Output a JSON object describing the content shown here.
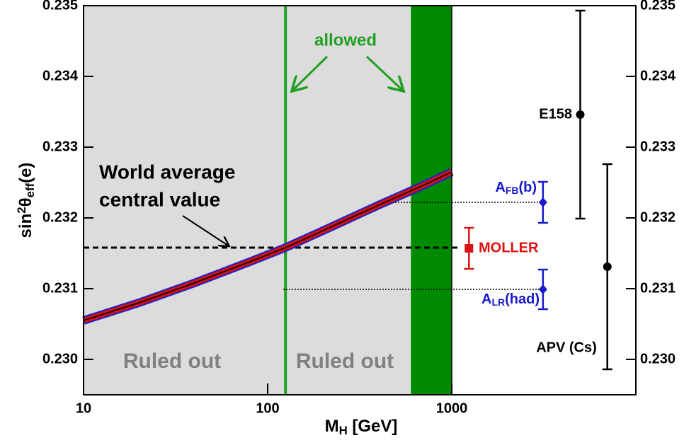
{
  "chart_data": {
    "type": "band_with_points",
    "xlabel": [
      "M",
      "H",
      " [GeV]"
    ],
    "ylabel": [
      "sin",
      "2",
      "θ",
      "eff",
      "(e)"
    ],
    "xscale": "log",
    "xlim": [
      10,
      10000
    ],
    "xticks": [
      10,
      100,
      1000
    ],
    "ylim": [
      0.2295,
      0.235
    ],
    "yticks": [
      {
        "value": 0.23,
        "label": "0.230"
      },
      0.231,
      0.232,
      0.233,
      0.234,
      0.235
    ],
    "regions": [
      {
        "x": [
          10,
          1000
        ],
        "color": "#dcdcdc"
      },
      {
        "x": [
          600,
          1000
        ],
        "color": "#008a00"
      }
    ],
    "higgs_mass": 125,
    "higgs_color": "#22a022",
    "curve": {
      "x": [
        10,
        20,
        40,
        80,
        125,
        200,
        400,
        700,
        1000
      ],
      "values": [
        0.23055,
        0.2308,
        0.23108,
        0.23138,
        0.23158,
        0.23182,
        0.23218,
        0.23246,
        0.23265
      ]
    },
    "world_average": 0.23158,
    "annotations": {
      "allowed": "allowed",
      "ruled_out": [
        "Ruled out",
        "Ruled out"
      ],
      "world_average": [
        "World average",
        "central value"
      ]
    },
    "points": [
      {
        "name": "MOLLER",
        "x": 1240,
        "value": 0.23157,
        "error": 0.00029,
        "color": "#dd1111"
      },
      {
        "name": [
          "A",
          "FB",
          "(b)"
        ],
        "x": 3130,
        "value": 0.23222,
        "error": 0.00029,
        "color": "#1a1acc"
      },
      {
        "name": [
          "A",
          "LR",
          "(had)"
        ],
        "x": 3130,
        "value": 0.23099,
        "error": 0.00028,
        "color": "#1a1acc"
      },
      {
        "name": "E158",
        "x": 4990,
        "value": 0.23346,
        "error": 0.00147,
        "color": "#000000"
      },
      {
        "name": "APV (Cs)",
        "x": 7000,
        "value": 0.23131,
        "error": 0.00145,
        "color": "#000000"
      }
    ]
  }
}
